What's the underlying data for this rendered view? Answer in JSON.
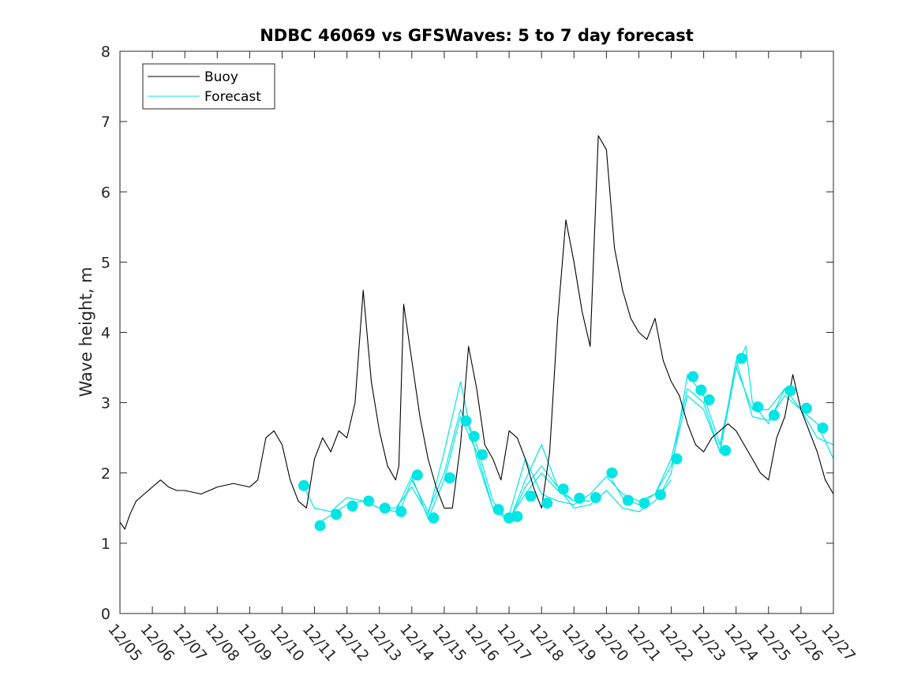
{
  "chart_data": {
    "type": "line",
    "title": "NDBC 46069 vs GFSWaves: 5 to 7 day forecast",
    "xlabel": "",
    "ylabel": "Wave height, m",
    "xlim": [
      0,
      22
    ],
    "ylim": [
      0,
      8
    ],
    "x_unit": "days since 12/05",
    "x_ticks": [
      0,
      1,
      2,
      3,
      4,
      5,
      6,
      7,
      8,
      9,
      10,
      11,
      12,
      13,
      14,
      15,
      16,
      17,
      18,
      19,
      20,
      21,
      22
    ],
    "x_tick_labels": [
      "12/05",
      "12/06",
      "12/07",
      "12/08",
      "12/09",
      "12/10",
      "12/11",
      "12/12",
      "12/13",
      "12/14",
      "12/15",
      "12/16",
      "12/17",
      "12/18",
      "12/19",
      "12/20",
      "12/21",
      "12/22",
      "12/23",
      "12/24",
      "12/25",
      "12/26",
      "12/27"
    ],
    "y_ticks": [
      0,
      1,
      2,
      3,
      4,
      5,
      6,
      7,
      8
    ],
    "y_tick_labels": [
      "0",
      "1",
      "2",
      "3",
      "4",
      "5",
      "6",
      "7",
      "8"
    ],
    "legend": {
      "position": "top-left",
      "entries": [
        "Buoy",
        "Forecast"
      ]
    },
    "colors": {
      "buoy": "#000000",
      "forecast": "#00e5e5"
    },
    "series": [
      {
        "name": "Buoy",
        "x": [
          0,
          0.15,
          0.3,
          0.5,
          0.75,
          1,
          1.25,
          1.5,
          1.75,
          2,
          2.5,
          3,
          3.5,
          4,
          4.25,
          4.5,
          4.75,
          5,
          5.25,
          5.5,
          5.75,
          6,
          6.25,
          6.5,
          6.75,
          7,
          7.25,
          7.5,
          7.75,
          8,
          8.25,
          8.5,
          8.6,
          8.75,
          9,
          9.25,
          9.5,
          9.75,
          10,
          10.25,
          10.5,
          10.75,
          11,
          11.25,
          11.5,
          11.75,
          12,
          12.25,
          12.5,
          12.75,
          13,
          13.25,
          13.5,
          13.75,
          14,
          14.25,
          14.5,
          14.75,
          15,
          15.25,
          15.5,
          15.75,
          16,
          16.25,
          16.5,
          16.75,
          17,
          17.25,
          17.5,
          17.75,
          18,
          18.25,
          18.5,
          18.75,
          19,
          19.25,
          19.5,
          19.75,
          20,
          20.25,
          20.5,
          20.75,
          21,
          21.25,
          21.5,
          21.75,
          22
        ],
        "y": [
          1.3,
          1.2,
          1.4,
          1.6,
          1.7,
          1.8,
          1.9,
          1.8,
          1.75,
          1.75,
          1.7,
          1.8,
          1.85,
          1.8,
          1.9,
          2.5,
          2.6,
          2.4,
          1.9,
          1.6,
          1.5,
          2.2,
          2.5,
          2.3,
          2.6,
          2.5,
          3.0,
          4.6,
          3.3,
          2.6,
          2.1,
          1.9,
          2.1,
          4.4,
          3.6,
          2.8,
          2.2,
          1.8,
          1.5,
          1.5,
          2.4,
          3.8,
          3.2,
          2.4,
          2.2,
          1.9,
          2.6,
          2.5,
          2.2,
          1.8,
          1.5,
          2.3,
          4.2,
          5.6,
          5.0,
          4.3,
          3.8,
          6.8,
          6.6,
          5.2,
          4.6,
          4.2,
          4.0,
          3.9,
          4.2,
          3.6,
          3.3,
          3.1,
          2.7,
          2.4,
          2.3,
          2.5,
          2.6,
          2.7,
          2.6,
          2.4,
          2.2,
          2.0,
          1.9,
          2.5,
          2.8,
          3.4,
          2.9,
          2.6,
          2.3,
          1.9,
          1.7
        ]
      },
      {
        "name": "Forecast",
        "markers": [
          {
            "x": 5.67,
            "y": 1.82
          },
          {
            "x": 6.17,
            "y": 1.25
          },
          {
            "x": 6.67,
            "y": 1.41
          },
          {
            "x": 7.17,
            "y": 1.53
          },
          {
            "x": 7.67,
            "y": 1.6
          },
          {
            "x": 8.17,
            "y": 1.5
          },
          {
            "x": 8.67,
            "y": 1.45
          },
          {
            "x": 9.17,
            "y": 1.97
          },
          {
            "x": 9.67,
            "y": 1.36
          },
          {
            "x": 10.17,
            "y": 1.93
          },
          {
            "x": 10.67,
            "y": 2.74
          },
          {
            "x": 10.92,
            "y": 2.52
          },
          {
            "x": 11.17,
            "y": 2.26
          },
          {
            "x": 11.67,
            "y": 1.48
          },
          {
            "x": 12.0,
            "y": 1.36
          },
          {
            "x": 12.25,
            "y": 1.38
          },
          {
            "x": 12.67,
            "y": 1.67
          },
          {
            "x": 13.17,
            "y": 1.57
          },
          {
            "x": 13.67,
            "y": 1.77
          },
          {
            "x": 14.17,
            "y": 1.64
          },
          {
            "x": 14.67,
            "y": 1.65
          },
          {
            "x": 15.17,
            "y": 2.0
          },
          {
            "x": 15.67,
            "y": 1.61
          },
          {
            "x": 16.17,
            "y": 1.57
          },
          {
            "x": 16.67,
            "y": 1.69
          },
          {
            "x": 17.17,
            "y": 2.2
          },
          {
            "x": 17.67,
            "y": 3.37
          },
          {
            "x": 17.92,
            "y": 3.18
          },
          {
            "x": 18.17,
            "y": 3.04
          },
          {
            "x": 18.67,
            "y": 2.32
          },
          {
            "x": 19.17,
            "y": 3.63
          },
          {
            "x": 19.67,
            "y": 2.94
          },
          {
            "x": 20.17,
            "y": 2.82
          },
          {
            "x": 20.67,
            "y": 3.17
          },
          {
            "x": 21.17,
            "y": 2.92
          },
          {
            "x": 21.67,
            "y": 2.64
          }
        ],
        "runs": [
          {
            "x": [
              5.67,
              6.0,
              6.5,
              7.0,
              7.5,
              8.0,
              8.5,
              9.0,
              9.5,
              10.0,
              10.5,
              11.0,
              11.5,
              12.0,
              12.5,
              13.0,
              13.5,
              14.0
            ],
            "y": [
              1.8,
              1.5,
              1.45,
              1.65,
              1.6,
              1.5,
              1.45,
              1.95,
              1.35,
              1.9,
              2.8,
              2.3,
              1.5,
              1.35,
              1.7,
              2.0,
              1.75,
              1.6
            ]
          },
          {
            "x": [
              6.17,
              6.5,
              7.0,
              7.5,
              8.0,
              8.5,
              9.0,
              9.5,
              10.0,
              10.5,
              11.0,
              11.5,
              12.0,
              12.5,
              13.0,
              13.5,
              14.0,
              14.5
            ],
            "y": [
              1.3,
              1.4,
              1.55,
              1.6,
              1.5,
              1.5,
              1.8,
              1.4,
              2.3,
              3.3,
              2.2,
              1.5,
              1.3,
              1.8,
              2.1,
              1.8,
              1.6,
              1.6
            ]
          },
          {
            "x": [
              8.67,
              9.0,
              9.5,
              10.0,
              10.5,
              11.0,
              11.5,
              12.0,
              12.5,
              13.0,
              13.5,
              14.0,
              14.5,
              15.0,
              15.5,
              16.0,
              16.5,
              17.0
            ],
            "y": [
              1.5,
              1.9,
              1.45,
              2.0,
              2.9,
              2.4,
              1.6,
              1.3,
              1.9,
              2.4,
              1.8,
              1.5,
              1.55,
              1.75,
              1.5,
              1.45,
              1.6,
              1.9
            ]
          },
          {
            "x": [
              12.0,
              12.5,
              13.0,
              13.5,
              14.0,
              14.5,
              15.0,
              15.5,
              16.0,
              16.5,
              17.0,
              17.5,
              18.0,
              18.5,
              19.0,
              19.5,
              20.0,
              20.5
            ],
            "y": [
              1.4,
              2.2,
              1.7,
              1.6,
              1.55,
              1.7,
              1.95,
              1.7,
              1.6,
              1.7,
              2.2,
              3.2,
              3.0,
              2.3,
              3.5,
              2.9,
              2.9,
              3.2
            ]
          },
          {
            "x": [
              15.17,
              15.5,
              16.0,
              16.5,
              17.0,
              17.5,
              18.0,
              18.5,
              19.0,
              19.5,
              20.0,
              20.5,
              21.0,
              21.5,
              22.0
            ],
            "y": [
              1.9,
              1.65,
              1.55,
              1.7,
              2.1,
              3.1,
              2.9,
              2.3,
              3.6,
              2.8,
              2.75,
              3.1,
              2.9,
              2.7,
              2.2
            ]
          },
          {
            "x": [
              16.67,
              17.0,
              17.5,
              18.0,
              18.5,
              19.0,
              19.3,
              19.5,
              20.0,
              20.5,
              21.0,
              21.5,
              22.0
            ],
            "y": [
              1.7,
              2.0,
              3.4,
              3.1,
              2.4,
              3.5,
              3.8,
              3.0,
              2.7,
              3.2,
              2.9,
              2.5,
              2.4
            ]
          }
        ]
      }
    ]
  }
}
